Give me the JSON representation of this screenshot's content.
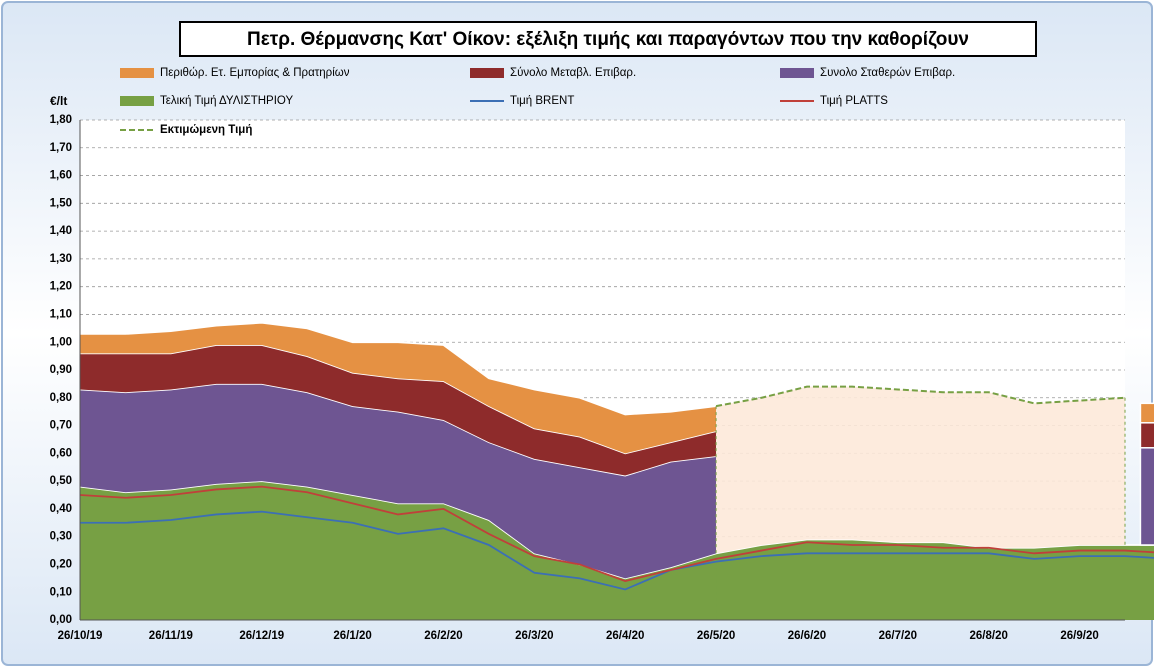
{
  "chart_data": {
    "type": "area",
    "title": "Πετρ. Θέρμανσης Κατ' Οίκον: εξέλιξη τιμής και παραγόντων που την καθορίζουν",
    "y_axis_label": "€/lt",
    "categories": [
      "26/10/19",
      null,
      "26/11/19",
      null,
      "26/12/19",
      null,
      "26/1/20",
      null,
      "26/2/20",
      null,
      "26/3/20",
      null,
      "26/4/20",
      null,
      "26/5/20",
      null,
      "26/6/20",
      null,
      "26/7/20",
      null,
      "26/8/20",
      null,
      "26/9/20",
      null,
      null
    ],
    "ylim": [
      0,
      1.8
    ],
    "yticks": [
      {
        "value": 0,
        "label": "0,00"
      },
      {
        "value": 0.1,
        "label": "0,10"
      },
      {
        "value": 0.2,
        "label": "0,20"
      },
      {
        "value": 0.3,
        "label": "0,30"
      },
      {
        "value": 0.4,
        "label": "0,40"
      },
      {
        "value": 0.5,
        "label": "0,50"
      },
      {
        "value": 0.6,
        "label": "0,60"
      },
      {
        "value": 0.7,
        "label": "0,70"
      },
      {
        "value": 0.8,
        "label": "0,80"
      },
      {
        "value": 0.9,
        "label": "0,90"
      },
      {
        "value": 1.0,
        "label": "1,00"
      },
      {
        "value": 1.1,
        "label": "1,10"
      },
      {
        "value": 1.2,
        "label": "1,20"
      },
      {
        "value": 1.3,
        "label": "1,30"
      },
      {
        "value": 1.4,
        "label": "1,40"
      },
      {
        "value": 1.5,
        "label": "1,50"
      },
      {
        "value": 1.6,
        "label": "1,60"
      },
      {
        "value": 1.7,
        "label": "1,70"
      },
      {
        "value": 1.8,
        "label": "1,80"
      }
    ],
    "grid": true,
    "series": [
      {
        "name": "Τελική Τιμή ΔΥΛΙΣΤΗΡΙΟΥ",
        "color": "#77a044",
        "style": "stacked",
        "values": [
          0.48,
          0.46,
          0.47,
          0.49,
          0.5,
          0.48,
          0.45,
          0.42,
          0.42,
          0.36,
          0.24,
          0.2,
          0.15,
          0.19,
          0.24,
          0.27,
          0.29,
          0.29,
          0.28,
          0.28,
          0.26,
          0.26,
          0.27,
          0.27,
          0.27
        ]
      },
      {
        "name": "Συνολο Σταθερών Επιβαρ.",
        "color": "#6e5592",
        "style": "stacked",
        "values": [
          0.35,
          0.36,
          0.36,
          0.36,
          0.35,
          0.34,
          0.32,
          0.33,
          0.3,
          0.28,
          0.34,
          0.35,
          0.37,
          0.38,
          0.35,
          null,
          null,
          null,
          null,
          null,
          null,
          null,
          null,
          null,
          0.35
        ]
      },
      {
        "name": "Σύνολο Μεταβλ. Επιβαρ.",
        "color": "#8e2b2b",
        "style": "stacked",
        "values": [
          0.13,
          0.14,
          0.13,
          0.14,
          0.14,
          0.13,
          0.12,
          0.12,
          0.14,
          0.13,
          0.11,
          0.11,
          0.08,
          0.07,
          0.09,
          null,
          null,
          null,
          null,
          null,
          null,
          null,
          null,
          null,
          0.09
        ]
      },
      {
        "name": "Περιθώρ. Ετ. Εμπορίας & Πρατηρίων",
        "color": "#e59143",
        "style": "stacked",
        "values": [
          0.07,
          0.07,
          0.08,
          0.07,
          0.08,
          0.1,
          0.11,
          0.13,
          0.13,
          0.1,
          0.14,
          0.14,
          0.14,
          0.11,
          0.09,
          null,
          null,
          null,
          null,
          null,
          null,
          null,
          null,
          null,
          0.07
        ]
      },
      {
        "name": "Τιμή BRENT",
        "color": "#3c6fb5",
        "style": "line",
        "values": [
          0.35,
          0.35,
          0.36,
          0.38,
          0.39,
          0.37,
          0.35,
          0.31,
          0.33,
          0.27,
          0.17,
          0.15,
          0.11,
          0.18,
          0.21,
          0.23,
          0.24,
          0.24,
          0.24,
          0.24,
          0.24,
          0.22,
          0.23,
          0.23,
          0.22
        ]
      },
      {
        "name": "Τιμή PLATTS",
        "color": "#c0403a",
        "style": "line",
        "values": [
          0.45,
          0.44,
          0.45,
          0.47,
          0.48,
          0.46,
          0.42,
          0.38,
          0.4,
          0.31,
          0.23,
          0.2,
          0.14,
          0.18,
          0.22,
          0.25,
          0.28,
          0.27,
          0.27,
          0.26,
          0.26,
          0.24,
          0.25,
          0.25,
          0.24
        ]
      },
      {
        "name": "Εκτιμώμενη Τιμή",
        "color": "#77a044",
        "style": "dashed",
        "values": [
          null,
          null,
          null,
          null,
          null,
          null,
          null,
          null,
          null,
          null,
          null,
          null,
          null,
          null,
          0.77,
          0.8,
          0.84,
          0.84,
          0.83,
          0.82,
          0.82,
          0.78,
          0.79,
          0.8,
          null
        ]
      }
    ]
  }
}
